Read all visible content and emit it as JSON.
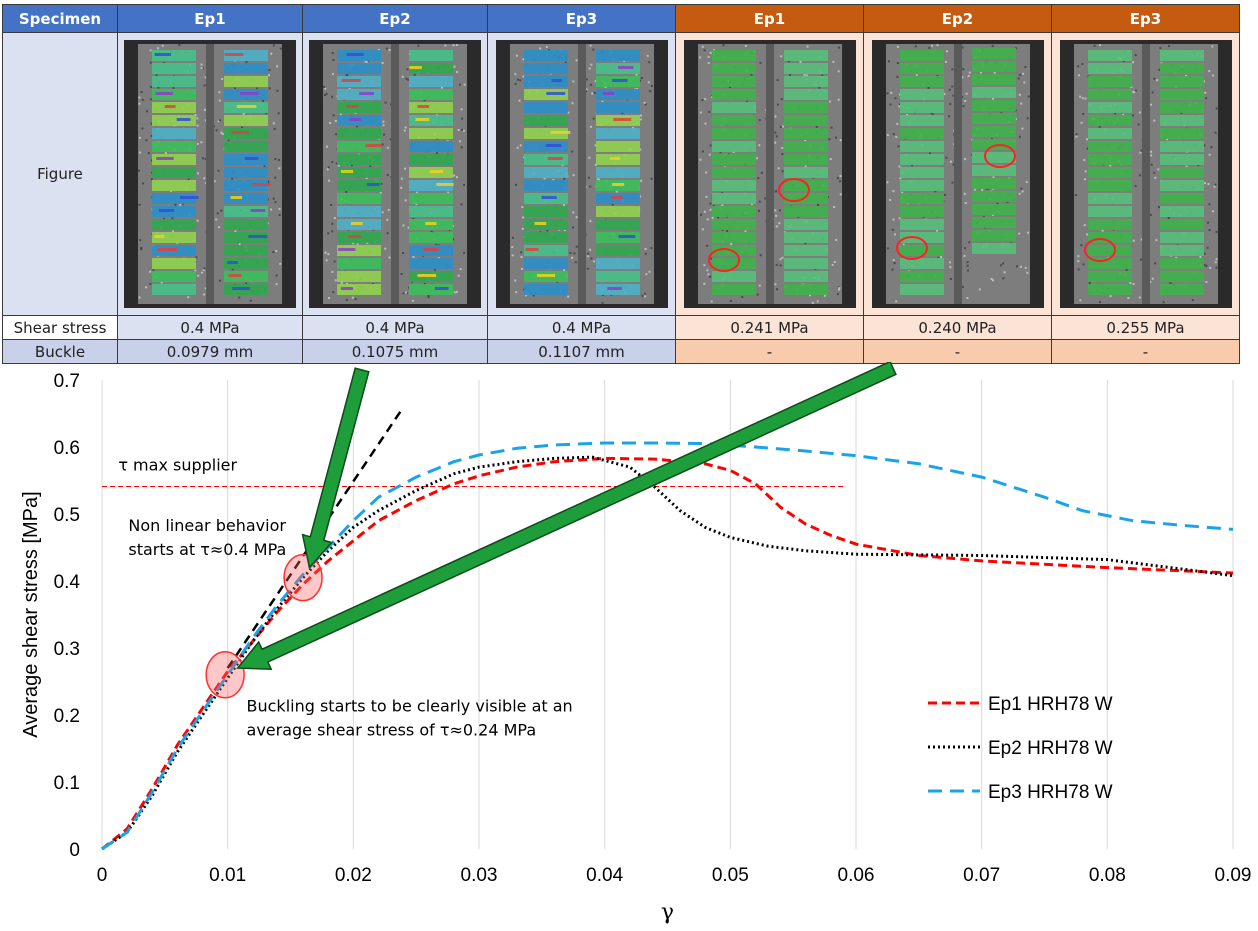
{
  "table": {
    "header_label": "Specimen",
    "columns": [
      {
        "label": "Ep1",
        "group": "blue",
        "shear_stress": "0.4 MPa",
        "buckle": "0.0979 mm",
        "image": "dic-strain-map"
      },
      {
        "label": "Ep2",
        "group": "blue",
        "shear_stress": "0.4 MPa",
        "buckle": "0.1075 mm",
        "image": "dic-strain-map"
      },
      {
        "label": "Ep3",
        "group": "blue",
        "shear_stress": "0.4 MPa",
        "buckle": "0.1107 mm",
        "image": "dic-strain-map"
      },
      {
        "label": "Ep1",
        "group": "orange",
        "shear_stress": "0.241 MPa",
        "buckle": "-",
        "image": "dic-strain-map-buckling-circled"
      },
      {
        "label": "Ep2",
        "group": "orange",
        "shear_stress": "0.240 MPa",
        "buckle": "-",
        "image": "dic-strain-map-buckling-circled"
      },
      {
        "label": "Ep3",
        "group": "orange",
        "shear_stress": "0.255 MPa",
        "buckle": "-",
        "image": "dic-strain-map-buckling-circled"
      }
    ],
    "row_labels": {
      "figure": "Figure",
      "shear_stress": "Shear stress",
      "buckle": "Buckle"
    },
    "colors": {
      "blue_header": "#4472c4",
      "orange_header": "#c55a11",
      "blue_cell": "#dbe1f1",
      "orange_cell": "#fbe4d5"
    }
  },
  "chart_data": {
    "type": "line",
    "xlabel": "γ",
    "ylabel": "Average shear stress [MPa]",
    "xlim": [
      0,
      0.09
    ],
    "ylim": [
      0,
      0.7
    ],
    "xticks": [
      "0",
      "0.01",
      "0.02",
      "0.03",
      "0.04",
      "0.05",
      "0.06",
      "0.07",
      "0.08",
      "0.09"
    ],
    "yticks": [
      "0",
      "0.1",
      "0.2",
      "0.3",
      "0.4",
      "0.5",
      "0.6",
      "0.7"
    ],
    "grid": "vertical",
    "legend": "bottom-right",
    "series": [
      {
        "name": "Ep1 HRH78 W",
        "color": "#ff0000",
        "style": "dashed",
        "x": [
          0,
          0.002,
          0.004,
          0.006,
          0.008,
          0.01,
          0.012,
          0.014,
          0.016,
          0.018,
          0.02,
          0.022,
          0.025,
          0.028,
          0.03,
          0.033,
          0.036,
          0.04,
          0.044,
          0.048,
          0.05,
          0.052,
          0.054,
          0.056,
          0.058,
          0.06,
          0.065,
          0.07,
          0.08,
          0.09
        ],
        "y": [
          0,
          0.03,
          0.09,
          0.155,
          0.21,
          0.265,
          0.31,
          0.355,
          0.395,
          0.43,
          0.46,
          0.49,
          0.52,
          0.545,
          0.557,
          0.57,
          0.578,
          0.583,
          0.582,
          0.575,
          0.565,
          0.545,
          0.51,
          0.485,
          0.468,
          0.455,
          0.438,
          0.43,
          0.42,
          0.412
        ]
      },
      {
        "name": "Ep2 HRH78 W",
        "color": "#000000",
        "style": "dotted",
        "x": [
          0,
          0.002,
          0.004,
          0.006,
          0.008,
          0.01,
          0.012,
          0.014,
          0.016,
          0.018,
          0.02,
          0.022,
          0.025,
          0.028,
          0.03,
          0.033,
          0.036,
          0.039,
          0.042,
          0.044,
          0.046,
          0.048,
          0.05,
          0.053,
          0.056,
          0.06,
          0.07,
          0.08,
          0.09
        ],
        "y": [
          0,
          0.025,
          0.08,
          0.145,
          0.2,
          0.255,
          0.31,
          0.36,
          0.405,
          0.445,
          0.48,
          0.505,
          0.535,
          0.56,
          0.57,
          0.578,
          0.583,
          0.585,
          0.57,
          0.54,
          0.505,
          0.48,
          0.465,
          0.452,
          0.445,
          0.44,
          0.438,
          0.432,
          0.408
        ]
      },
      {
        "name": "Ep3 HRH78 W",
        "color": "#1aa3e8",
        "style": "dashed-long",
        "x": [
          0,
          0.002,
          0.004,
          0.006,
          0.008,
          0.01,
          0.012,
          0.014,
          0.016,
          0.018,
          0.02,
          0.022,
          0.025,
          0.028,
          0.03,
          0.033,
          0.036,
          0.04,
          0.044,
          0.048,
          0.052,
          0.056,
          0.06,
          0.065,
          0.07,
          0.075,
          0.078,
          0.082,
          0.086,
          0.09
        ],
        "y": [
          0,
          0.025,
          0.085,
          0.15,
          0.205,
          0.26,
          0.315,
          0.365,
          0.41,
          0.45,
          0.49,
          0.525,
          0.555,
          0.578,
          0.588,
          0.598,
          0.603,
          0.606,
          0.606,
          0.605,
          0.6,
          0.594,
          0.587,
          0.575,
          0.555,
          0.525,
          0.505,
          0.49,
          0.483,
          0.477
        ]
      }
    ],
    "reference_lines": [
      {
        "label": "τ max supplier",
        "color": "#ff0000",
        "x": [
          0,
          0.059
        ],
        "y": [
          0.541,
          0.541
        ]
      },
      {
        "label": "linear-fit",
        "color": "#000000",
        "x": [
          0.01,
          0.024
        ],
        "y": [
          0.27,
          0.66
        ]
      }
    ],
    "annotations": [
      {
        "text": [
          "Non linear behavior",
          "starts at τ≈0.4 MPa"
        ],
        "x": 0.0021,
        "y": 0.475
      },
      {
        "text": [
          "Buckling starts to be clearly visible at an",
          "average shear stress of τ≈0.24 MPa"
        ],
        "x": 0.0115,
        "y": 0.205
      }
    ],
    "highlights": [
      {
        "x": 0.016,
        "y": 0.405
      },
      {
        "x": 0.0098,
        "y": 0.26
      }
    ]
  }
}
